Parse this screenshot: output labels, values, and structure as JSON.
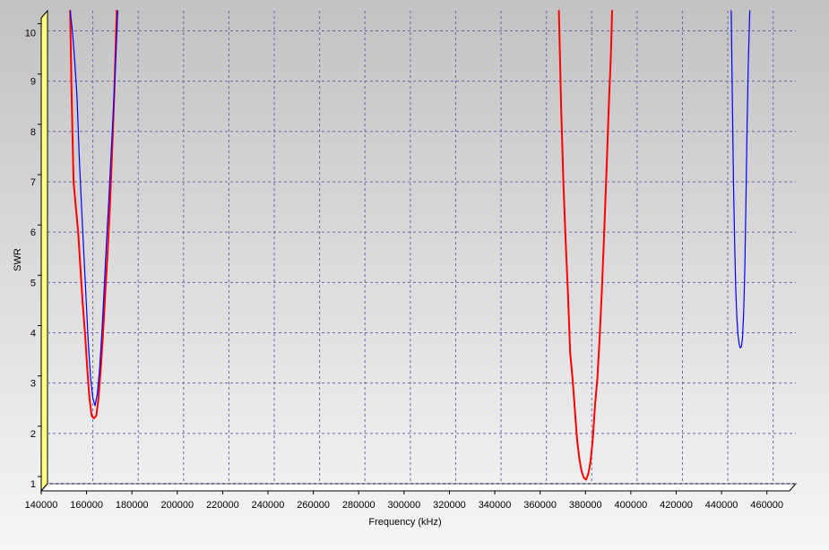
{
  "chart_data": {
    "type": "line",
    "title": "",
    "xlabel": "Frequency (kHz)",
    "ylabel": "SWR",
    "xlim": [
      140000,
      470000
    ],
    "ylim": [
      1,
      10.4
    ],
    "x_ticks": [
      140000,
      160000,
      180000,
      200000,
      220000,
      240000,
      260000,
      280000,
      300000,
      320000,
      340000,
      360000,
      380000,
      400000,
      420000,
      440000,
      460000
    ],
    "y_ticks": [
      1,
      2,
      3,
      4,
      5,
      6,
      7,
      8,
      9,
      10
    ],
    "grid": true,
    "legend": "none",
    "colors": {
      "background_top": "#c2c2c2",
      "background_bottom": "#f6f6f6",
      "grid": "#6a6aa8",
      "axis_wall": "#ffff80"
    },
    "series": [
      {
        "color": "#ff0000",
        "segments": [
          [
            [
              150000,
              10.4
            ],
            [
              150500,
              9.0
            ],
            [
              151000,
              8.0
            ],
            [
              151500,
              7.0
            ],
            [
              152500,
              6.5
            ],
            [
              153500,
              6.0
            ],
            [
              154500,
              5.3
            ],
            [
              155500,
              4.6
            ],
            [
              156500,
              4.0
            ],
            [
              157500,
              3.3
            ],
            [
              158500,
              2.7
            ],
            [
              159500,
              2.35
            ],
            [
              160500,
              2.3
            ],
            [
              161500,
              2.35
            ],
            [
              162500,
              2.7
            ],
            [
              163500,
              3.3
            ],
            [
              164500,
              4.0
            ],
            [
              165500,
              4.8
            ],
            [
              166500,
              5.6
            ],
            [
              167500,
              6.5
            ],
            [
              168500,
              7.6
            ],
            [
              169500,
              8.8
            ],
            [
              170500,
              10.4
            ]
          ],
          [
            [
              365500,
              10.4
            ],
            [
              366500,
              8.5
            ],
            [
              367500,
              7.0
            ],
            [
              368500,
              5.8
            ],
            [
              369500,
              4.8
            ],
            [
              370500,
              3.6
            ],
            [
              371500,
              3.1
            ],
            [
              372500,
              2.5
            ],
            [
              373500,
              1.9
            ],
            [
              374500,
              1.5
            ],
            [
              375500,
              1.25
            ],
            [
              376500,
              1.12
            ],
            [
              377500,
              1.08
            ],
            [
              378500,
              1.2
            ],
            [
              379500,
              1.45
            ],
            [
              380500,
              1.9
            ],
            [
              381500,
              2.6
            ],
            [
              382500,
              3.1
            ],
            [
              383500,
              3.9
            ],
            [
              384500,
              4.9
            ],
            [
              385500,
              6.0
            ],
            [
              386500,
              7.2
            ],
            [
              387500,
              8.5
            ],
            [
              388500,
              9.6
            ],
            [
              389000,
              10.4
            ]
          ]
        ]
      },
      {
        "color": "#0000ff",
        "segments": [
          [
            [
              150000,
              10.4
            ],
            [
              151000,
              10.0
            ],
            [
              152000,
              9.4
            ],
            [
              153000,
              8.7
            ],
            [
              154000,
              7.5
            ],
            [
              155000,
              6.5
            ],
            [
              156000,
              5.6
            ],
            [
              157000,
              4.7
            ],
            [
              158000,
              3.8
            ],
            [
              159000,
              3.1
            ],
            [
              160000,
              2.7
            ],
            [
              161000,
              2.55
            ],
            [
              162000,
              2.8
            ],
            [
              163000,
              3.3
            ],
            [
              164000,
              4.0
            ],
            [
              165000,
              4.9
            ],
            [
              166000,
              5.8
            ],
            [
              167000,
              6.6
            ],
            [
              168000,
              7.5
            ],
            [
              169000,
              8.4
            ],
            [
              170000,
              9.3
            ],
            [
              171000,
              10.4
            ]
          ],
          [
            [
              441500,
              10.4
            ],
            [
              442000,
              8.6
            ],
            [
              442500,
              7.0
            ],
            [
              443000,
              5.8
            ],
            [
              443500,
              4.9
            ],
            [
              444000,
              4.3
            ],
            [
              444500,
              3.95
            ],
            [
              445000,
              3.78
            ],
            [
              445500,
              3.7
            ],
            [
              446000,
              3.72
            ],
            [
              446500,
              3.9
            ],
            [
              447000,
              4.4
            ],
            [
              447500,
              5.3
            ],
            [
              448000,
              6.6
            ],
            [
              448500,
              8.1
            ],
            [
              449000,
              9.3
            ],
            [
              449700,
              10.4
            ]
          ]
        ]
      }
    ]
  }
}
